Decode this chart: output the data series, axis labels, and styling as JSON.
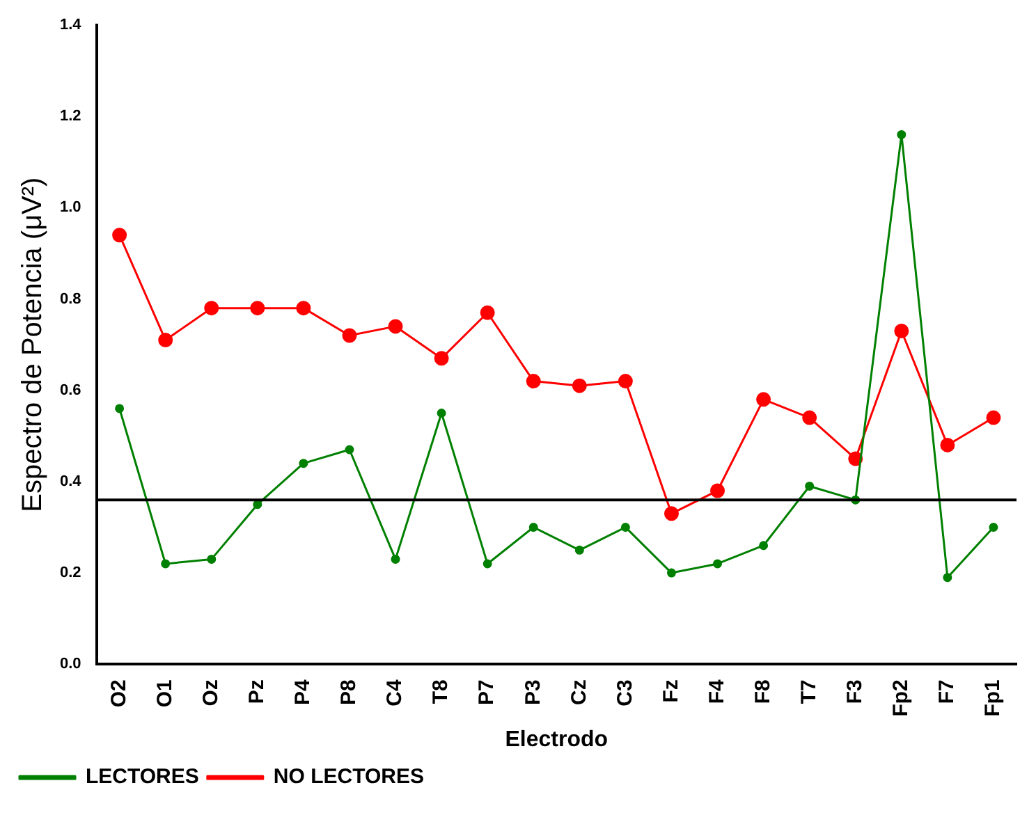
{
  "chart_data": {
    "type": "line",
    "xlabel": "Electrodo",
    "ylabel": "Espectro de Potencia (μV²)",
    "categories": [
      "O2",
      "O1",
      "Oz",
      "Pz",
      "P4",
      "P8",
      "C4",
      "T8",
      "P7",
      "P3",
      "Cz",
      "C3",
      "Fz",
      "F4",
      "F8",
      "T7",
      "F3",
      "Fp2",
      "F7",
      "Fp1"
    ],
    "series": [
      {
        "name": "LECTORES",
        "color": "#008000",
        "values": [
          0.56,
          0.22,
          0.23,
          0.35,
          0.44,
          0.47,
          0.23,
          0.55,
          0.22,
          0.3,
          0.25,
          0.3,
          0.2,
          0.22,
          0.26,
          0.39,
          0.36,
          1.16,
          0.19,
          0.3
        ]
      },
      {
        "name": "NO LECTORES",
        "color": "#ff0000",
        "values": [
          0.94,
          0.71,
          0.78,
          0.78,
          0.78,
          0.72,
          0.74,
          0.67,
          0.77,
          0.62,
          0.61,
          0.62,
          0.33,
          0.38,
          0.58,
          0.54,
          0.45,
          0.73,
          0.48,
          0.54
        ]
      }
    ],
    "ylim": [
      0,
      1.4
    ],
    "yticks": [
      {
        "value": 0,
        "label": "0.0"
      },
      0.2,
      0.4,
      0.6,
      0.8,
      {
        "value": 1,
        "label": "1.0"
      },
      1.2,
      1.4
    ],
    "ref_lines": [
      {
        "axis": "y",
        "value": 0.36,
        "color": "#000000"
      }
    ],
    "grid": false,
    "legend": "bottom left",
    "marker": "circle",
    "line_style": "solid"
  }
}
